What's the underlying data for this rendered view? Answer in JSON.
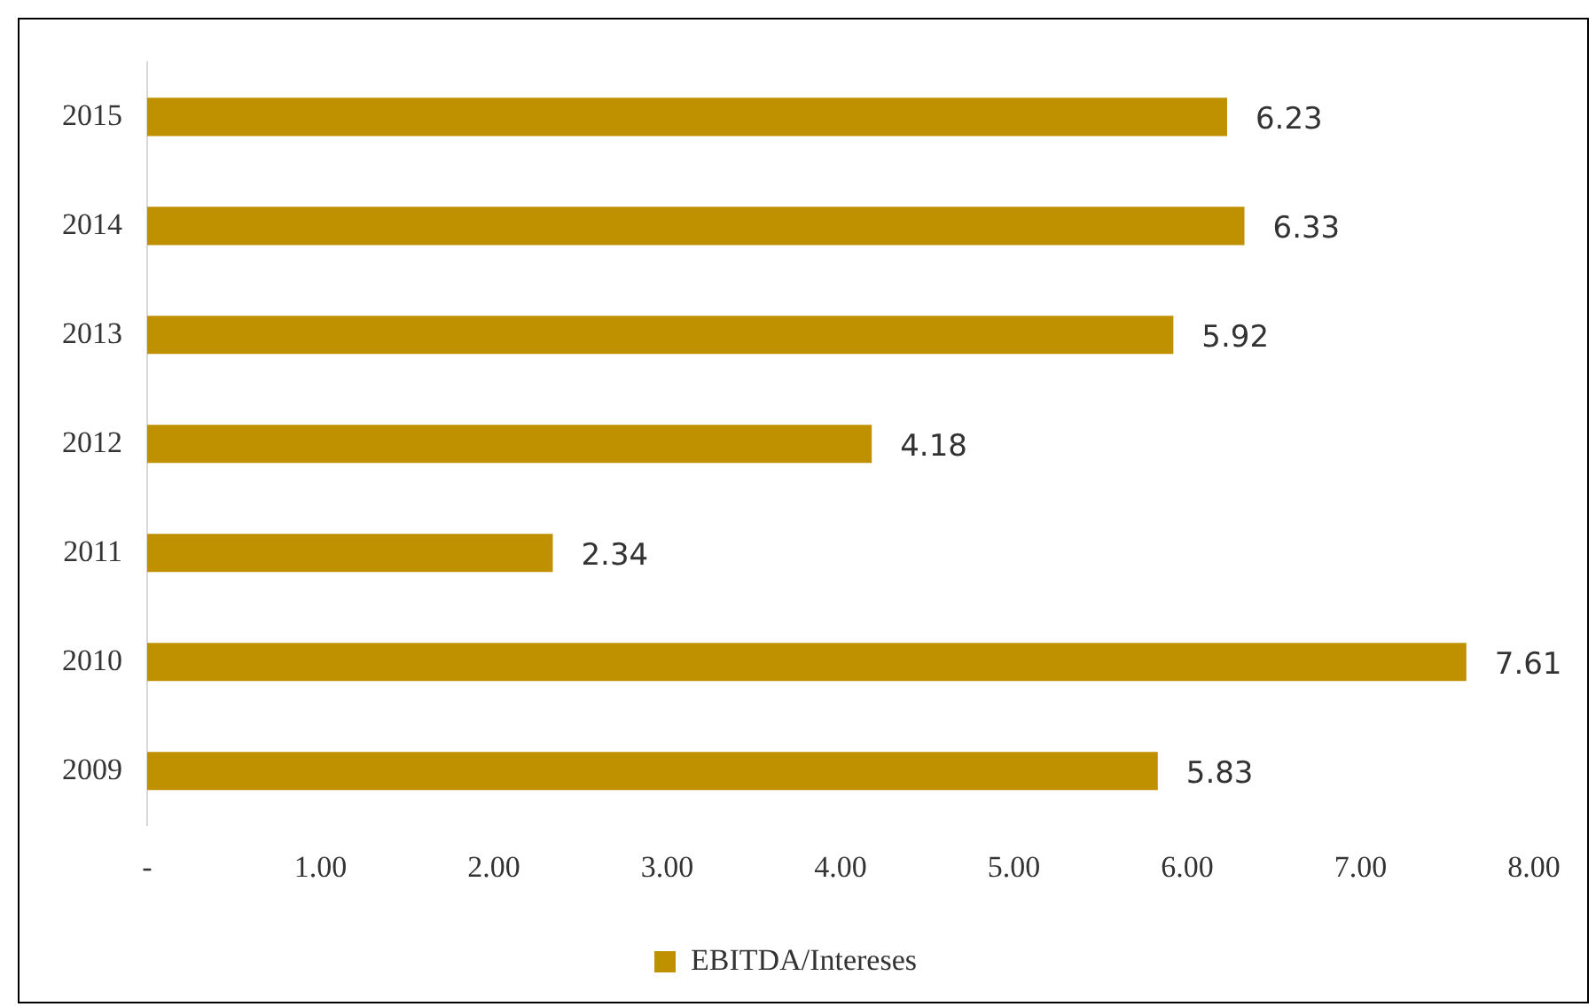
{
  "chart_data": {
    "type": "bar",
    "orientation": "horizontal",
    "categories": [
      "2015",
      "2014",
      "2013",
      "2012",
      "2011",
      "2010",
      "2009"
    ],
    "series": [
      {
        "name": "EBITDA/Intereses",
        "color": "#bf9000",
        "values": [
          6.23,
          6.33,
          5.92,
          4.18,
          2.34,
          7.61,
          5.83
        ]
      }
    ],
    "xlim": [
      0,
      8
    ],
    "xticks": [
      {
        "value": 0,
        "label": "-"
      },
      {
        "value": 1,
        "label": "1.00"
      },
      {
        "value": 2,
        "label": "2.00"
      },
      {
        "value": 3,
        "label": "3.00"
      },
      {
        "value": 4,
        "label": "4.00"
      },
      {
        "value": 5,
        "label": "5.00"
      },
      {
        "value": 6,
        "label": "6.00"
      },
      {
        "value": 7,
        "label": "7.00"
      },
      {
        "value": 8,
        "label": "8.00"
      }
    ],
    "data_labels": true,
    "grid": false,
    "legend": "bottom"
  }
}
